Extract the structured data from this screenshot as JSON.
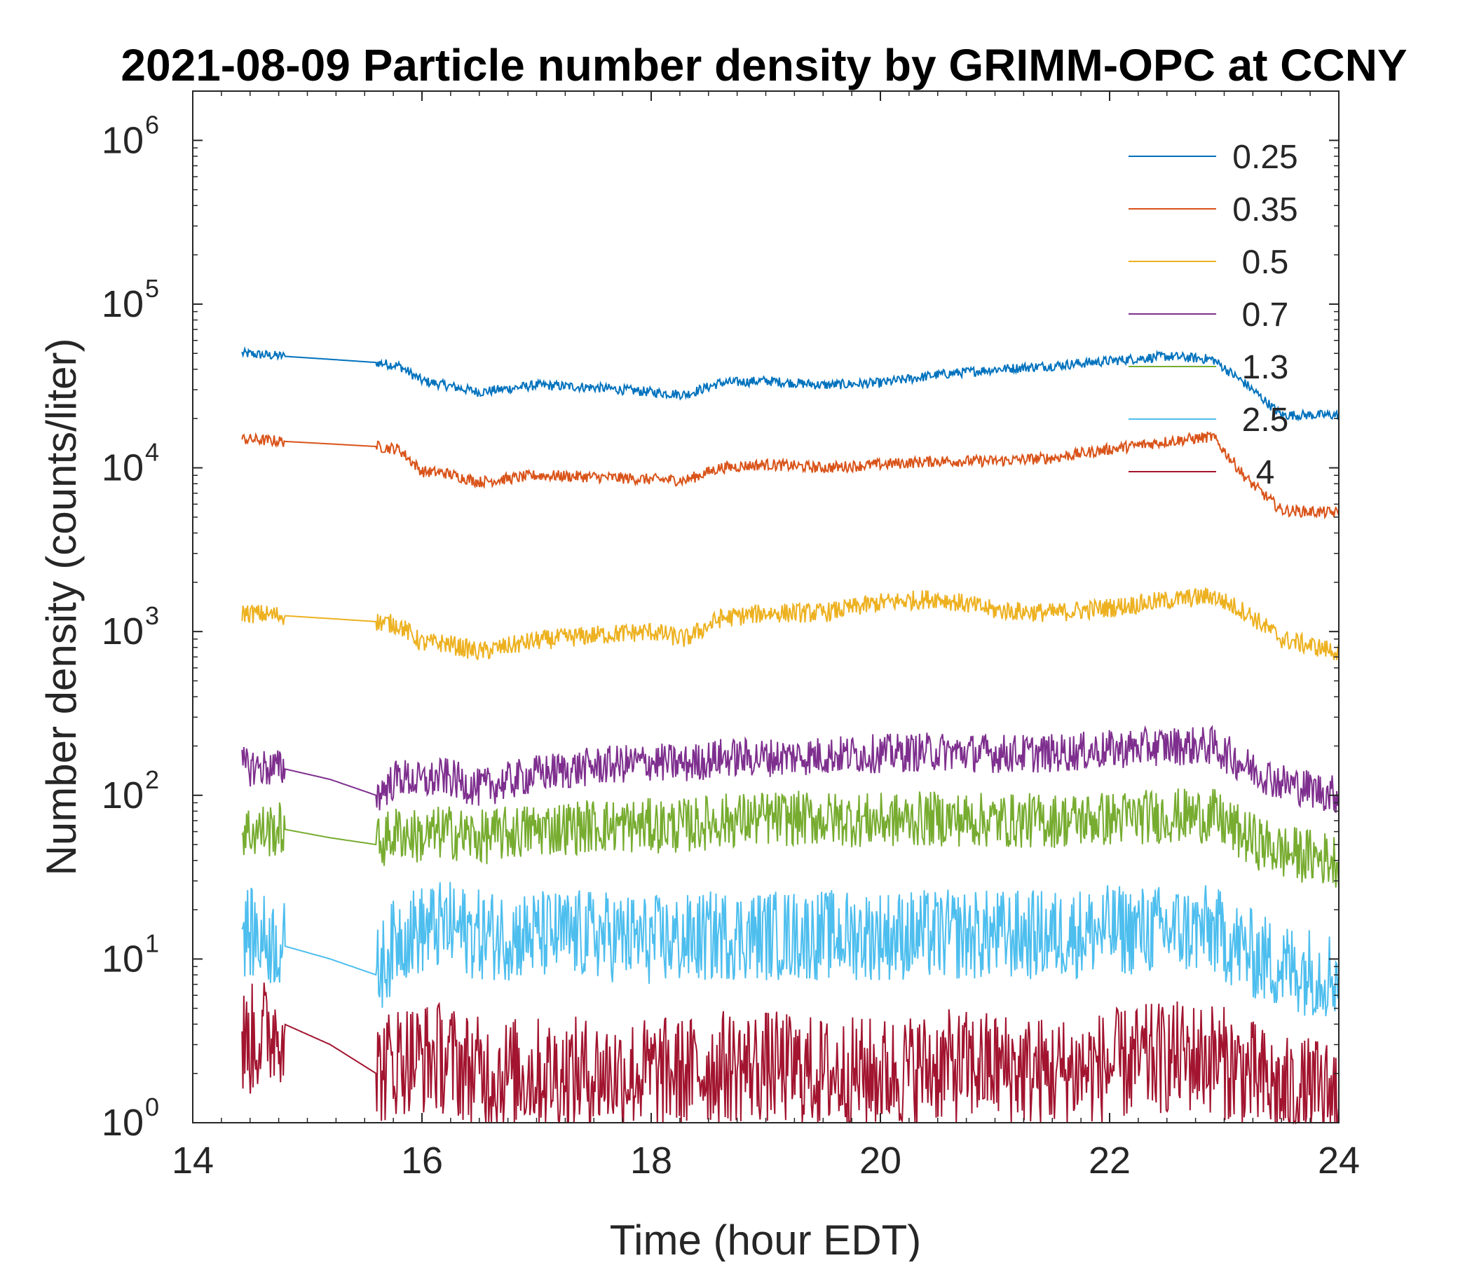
{
  "chart_data": {
    "type": "line",
    "title": "2021-08-09 Particle number density by GRIMM-OPC at CCNY",
    "xlabel": "Time (hour EDT)",
    "ylabel": "Number density (counts/liter)",
    "xlim": [
      14,
      24
    ],
    "ylim": [
      1,
      2000000
    ],
    "yscale": "log",
    "xticks": [
      14,
      16,
      18,
      20,
      22,
      24
    ],
    "xtick_labels": [
      "14",
      "16",
      "18",
      "20",
      "22",
      "24"
    ],
    "yticks": [
      1,
      10,
      100,
      1000,
      10000,
      100000,
      1000000
    ],
    "ytick_base": "10",
    "ytick_exponents": [
      "0",
      "1",
      "2",
      "3",
      "4",
      "5",
      "6"
    ],
    "legend_position": "top-right",
    "series": [
      {
        "name": "0.25",
        "color": "#0072BD",
        "x": [
          14.43,
          14.8,
          15.2,
          15.6,
          15.8,
          16.0,
          16.2,
          16.5,
          17.0,
          17.5,
          18.0,
          18.3,
          18.6,
          19.0,
          19.5,
          20.0,
          20.5,
          21.0,
          21.5,
          22.0,
          22.5,
          22.9,
          23.2,
          23.5,
          24.0
        ],
        "values": [
          50000,
          48000,
          46000,
          44000,
          42000,
          34000,
          32000,
          29000,
          32000,
          31000,
          29000,
          28000,
          33000,
          34000,
          32000,
          33000,
          37000,
          40000,
          42000,
          45000,
          48000,
          46000,
          32000,
          21000,
          21000
        ]
      },
      {
        "name": "0.35",
        "color": "#D95319",
        "x": [
          14.43,
          14.8,
          15.2,
          15.6,
          15.8,
          16.0,
          16.2,
          16.5,
          17.0,
          17.5,
          18.0,
          18.3,
          18.6,
          19.0,
          19.5,
          20.0,
          20.5,
          21.0,
          21.5,
          22.0,
          22.5,
          22.9,
          23.2,
          23.5,
          24.0
        ],
        "values": [
          15000,
          14500,
          14000,
          13500,
          13000,
          9500,
          9300,
          8200,
          9000,
          8800,
          8500,
          8400,
          10000,
          10500,
          10000,
          10500,
          11000,
          11000,
          11500,
          13000,
          14500,
          15500,
          8500,
          5500,
          5300
        ]
      },
      {
        "name": "0.5",
        "color": "#EDB120",
        "x": [
          14.43,
          14.8,
          15.2,
          15.6,
          15.8,
          16.0,
          16.2,
          16.5,
          17.0,
          17.5,
          18.0,
          18.3,
          18.6,
          19.0,
          19.5,
          20.0,
          20.5,
          21.0,
          21.5,
          22.0,
          22.5,
          22.9,
          23.2,
          23.5,
          24.0
        ],
        "values": [
          1300,
          1250,
          1200,
          1150,
          1100,
          850,
          850,
          750,
          880,
          950,
          1000,
          900,
          1200,
          1300,
          1300,
          1500,
          1600,
          1350,
          1300,
          1400,
          1550,
          1650,
          1300,
          900,
          750
        ]
      },
      {
        "name": "0.7",
        "color": "#7E2F8E",
        "x": [
          14.43,
          14.8,
          15.2,
          15.6,
          15.8,
          16.0,
          16.2,
          16.5,
          17.0,
          17.5,
          18.0,
          18.3,
          18.6,
          19.0,
          19.5,
          20.0,
          20.5,
          21.0,
          21.5,
          22.0,
          22.5,
          22.9,
          23.2,
          23.5,
          24.0
        ],
        "values": [
          150,
          145,
          125,
          100,
          130,
          120,
          130,
          110,
          135,
          150,
          160,
          155,
          170,
          170,
          175,
          180,
          185,
          180,
          180,
          190,
          200,
          200,
          150,
          120,
          100
        ]
      },
      {
        "name": "1.3",
        "color": "#77AC30",
        "x": [
          14.43,
          14.8,
          15.2,
          15.6,
          15.8,
          16.0,
          16.2,
          16.5,
          17.0,
          17.5,
          18.0,
          18.3,
          18.6,
          19.0,
          19.5,
          20.0,
          20.5,
          21.0,
          21.5,
          22.0,
          22.5,
          22.9,
          23.2,
          23.5,
          24.0
        ],
        "values": [
          60,
          62,
          55,
          50,
          60,
          55,
          60,
          55,
          62,
          65,
          65,
          65,
          70,
          72,
          72,
          70,
          72,
          70,
          70,
          72,
          75,
          75,
          55,
          45,
          40
        ]
      },
      {
        "name": "2.5",
        "color": "#4DBEEE",
        "x": [
          14.43,
          14.8,
          15.2,
          15.6,
          15.8,
          16.0,
          16.2,
          16.5,
          17.0,
          17.5,
          18.0,
          18.3,
          18.6,
          19.0,
          19.5,
          20.0,
          20.5,
          21.0,
          21.5,
          22.0,
          22.5,
          22.9,
          23.2,
          23.5,
          24.0
        ],
        "values": [
          15,
          12,
          10,
          8,
          14,
          15,
          16,
          14,
          14,
          14,
          13,
          13,
          14,
          14,
          14,
          14,
          14,
          14,
          14,
          15,
          15,
          15,
          11,
          9,
          8
        ]
      },
      {
        "name": "4",
        "color": "#A2142F",
        "x": [
          14.43,
          14.8,
          15.2,
          15.6,
          15.8,
          16.0,
          16.2,
          16.5,
          17.0,
          17.5,
          18.0,
          18.3,
          18.6,
          19.0,
          19.5,
          20.0,
          20.5,
          21.0,
          21.5,
          22.0,
          22.5,
          22.9,
          23.2,
          23.5,
          24.0
        ],
        "values": [
          3,
          4,
          3,
          2,
          2.5,
          2.5,
          2.5,
          2,
          2,
          2,
          2,
          2,
          2.2,
          2.2,
          2,
          2,
          2.2,
          2.2,
          2,
          2.2,
          2.5,
          2.5,
          2,
          1.5,
          1.5
        ]
      }
    ]
  }
}
